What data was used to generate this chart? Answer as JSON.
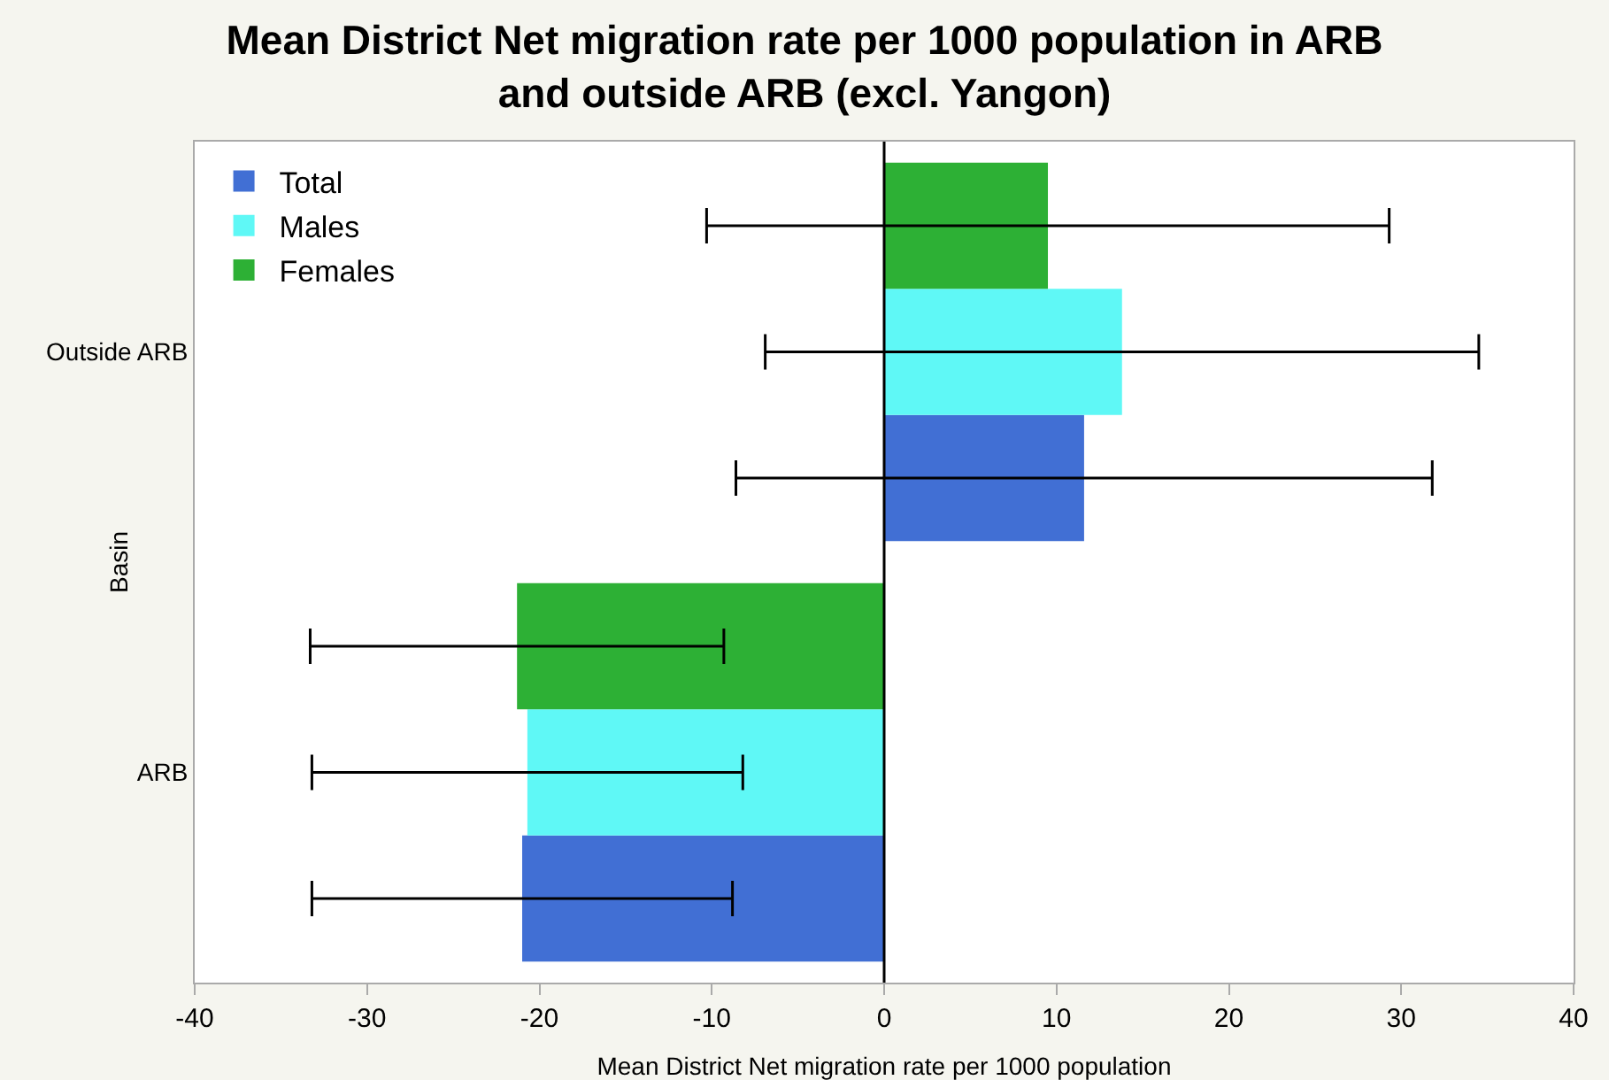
{
  "chart_data": {
    "type": "bar",
    "orientation": "horizontal",
    "title": "Mean District Net migration rate per 1000 population in ARB and outside ARB (excl. Yangon)",
    "xlabel": "Mean District Net migration rate per 1000 population",
    "ylabel": "Basin",
    "categories": [
      "Outside ARB",
      "ARB"
    ],
    "series": [
      {
        "name": "Total",
        "color": "#416fd4",
        "values": [
          11.6,
          -21.0
        ],
        "errors": [
          20.2,
          12.2
        ]
      },
      {
        "name": "Males",
        "color": "#5ff8f6",
        "values": [
          13.8,
          -20.7
        ],
        "errors": [
          20.7,
          12.5
        ]
      },
      {
        "name": "Females",
        "color": "#2db035",
        "values": [
          9.5,
          -21.3
        ],
        "errors": [
          19.8,
          12.0
        ]
      }
    ],
    "xlim": [
      -40,
      40
    ],
    "xticks": [
      -40,
      -30,
      -20,
      -10,
      0,
      10,
      20,
      30,
      40
    ],
    "grid": false,
    "legend": "top left",
    "ref_lines": [
      {
        "axis": "x",
        "value": 0,
        "color": "#000000"
      }
    ]
  }
}
